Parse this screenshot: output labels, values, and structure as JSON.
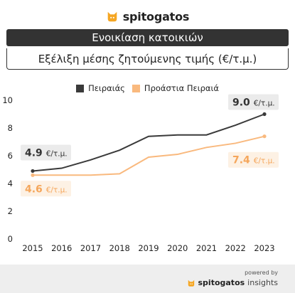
{
  "brand": {
    "name": "spitogatos",
    "accent": "#f5a623"
  },
  "banner": {
    "title": "Ενοικίαση κατοικιών"
  },
  "subtitle": "Εξέλιξη μέσης ζητούμενης τιμής (€/τ.μ.)",
  "footer": {
    "powered": "powered by",
    "brand_main": "spitogatos",
    "brand_sub": "insights"
  },
  "chart_data": {
    "type": "line",
    "x": [
      2015,
      2016,
      2017,
      2018,
      2019,
      2020,
      2021,
      2022,
      2023
    ],
    "ylim": [
      0,
      10
    ],
    "yticks": [
      0,
      2,
      4,
      6,
      8,
      10
    ],
    "grid": false,
    "legend_position": "top-center",
    "series": [
      {
        "name": "Πειραιάς",
        "color": "#3a3a3a",
        "marker": "circle",
        "values": [
          4.9,
          5.1,
          5.7,
          6.4,
          7.4,
          7.5,
          7.5,
          8.2,
          9.0
        ]
      },
      {
        "name": "Προάστια Πειραιά",
        "color": "#f9b97e",
        "marker": "circle",
        "values": [
          4.6,
          4.6,
          4.6,
          4.7,
          5.9,
          6.1,
          6.6,
          6.9,
          7.4
        ]
      }
    ],
    "annotations": [
      {
        "series": 0,
        "x": 2015,
        "value": "4.9",
        "unit": "€/τ.μ.",
        "style": "dark"
      },
      {
        "series": 0,
        "x": 2023,
        "value": "9.0",
        "unit": "€/τ.μ.",
        "style": "dark"
      },
      {
        "series": 1,
        "x": 2015,
        "value": "4.6",
        "unit": "€/τ.μ.",
        "style": "orange"
      },
      {
        "series": 1,
        "x": 2023,
        "value": "7.4",
        "unit": "€/τ.μ.",
        "style": "orange"
      }
    ]
  }
}
